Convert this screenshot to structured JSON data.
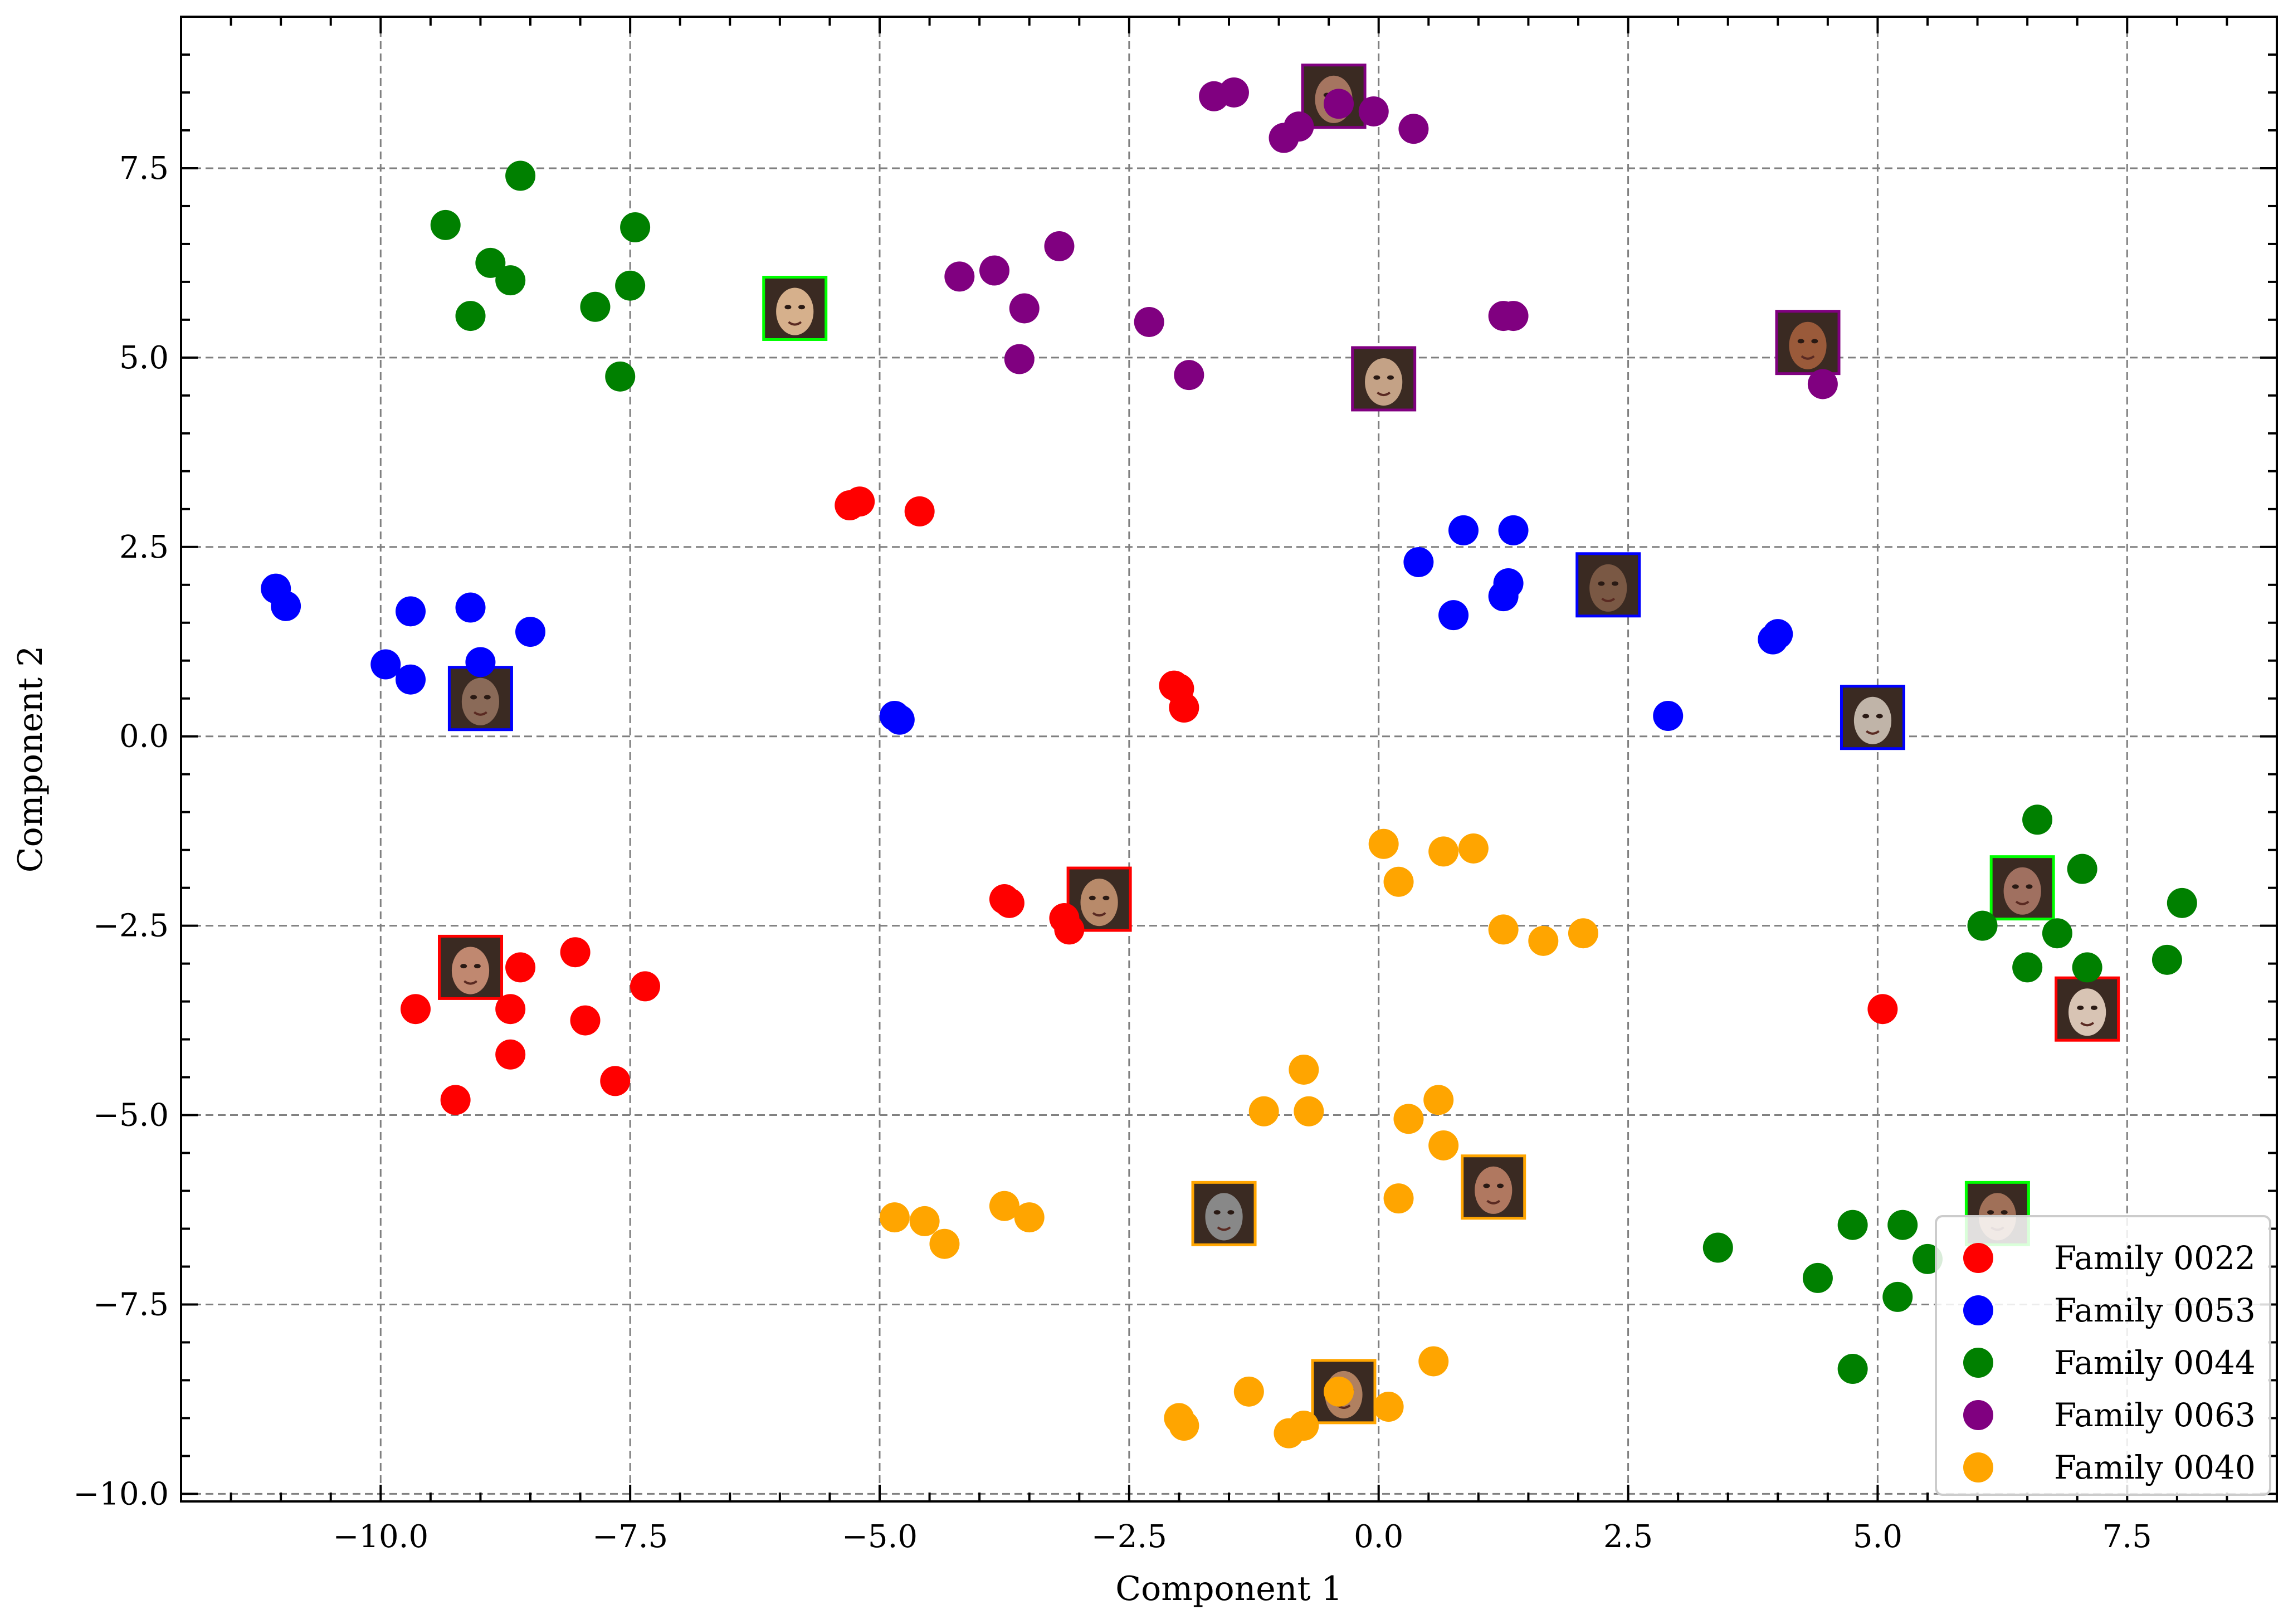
{
  "chart_data": {
    "type": "scatter",
    "xlabel": "Component 1",
    "ylabel": "Component 2",
    "xlim": [
      -12.0,
      9.0
    ],
    "ylim": [
      -10.1,
      9.5
    ],
    "xticks": [
      -10.0,
      -7.5,
      -5.0,
      -2.5,
      0.0,
      2.5,
      5.0,
      7.5
    ],
    "xtick_labels": [
      "−10.0",
      "−7.5",
      "−5.0",
      "−2.5",
      "0.0",
      "2.5",
      "5.0",
      "7.5"
    ],
    "yticks": [
      -10.0,
      -7.5,
      -5.0,
      -2.5,
      0.0,
      2.5,
      5.0,
      7.5
    ],
    "ytick_labels": [
      "−10.0",
      "−7.5",
      "−5.0",
      "−2.5",
      "0.0",
      "2.5",
      "5.0",
      "7.5"
    ],
    "grid": true,
    "legend_position": "lower-right",
    "series": [
      {
        "name": "Family 0022",
        "color": "#ff0000",
        "points": [
          [
            -5.3,
            3.05
          ],
          [
            -5.2,
            3.1
          ],
          [
            -4.6,
            2.97
          ],
          [
            -2.05,
            0.67
          ],
          [
            -2.0,
            0.63
          ],
          [
            -1.95,
            0.38
          ],
          [
            -3.75,
            -2.15
          ],
          [
            -3.7,
            -2.2
          ],
          [
            -3.15,
            -2.4
          ],
          [
            -3.1,
            -2.55
          ],
          [
            -9.65,
            -3.6
          ],
          [
            -9.25,
            -4.8
          ],
          [
            -8.7,
            -3.6
          ],
          [
            -8.7,
            -4.2
          ],
          [
            -8.6,
            -3.05
          ],
          [
            -8.05,
            -2.85
          ],
          [
            -7.95,
            -3.75
          ],
          [
            -7.65,
            -4.55
          ],
          [
            -7.35,
            -3.3
          ],
          [
            5.05,
            -3.6
          ]
        ]
      },
      {
        "name": "Family 0053",
        "color": "#0000ff",
        "points": [
          [
            -11.05,
            1.95
          ],
          [
            -10.95,
            1.72
          ],
          [
            -9.95,
            0.95
          ],
          [
            -9.7,
            0.75
          ],
          [
            -9.7,
            1.65
          ],
          [
            -9.1,
            1.7
          ],
          [
            -9.0,
            0.98
          ],
          [
            -8.5,
            1.38
          ],
          [
            -4.85,
            0.27
          ],
          [
            -4.8,
            0.22
          ],
          [
            0.4,
            2.3
          ],
          [
            0.75,
            1.6
          ],
          [
            0.85,
            2.72
          ],
          [
            1.25,
            1.85
          ],
          [
            1.3,
            2.02
          ],
          [
            1.35,
            2.72
          ],
          [
            3.95,
            1.28
          ],
          [
            4.0,
            1.35
          ],
          [
            2.9,
            0.27
          ]
        ]
      },
      {
        "name": "Family 0044",
        "color": "#008000",
        "points": [
          [
            -9.35,
            6.75
          ],
          [
            -9.1,
            5.55
          ],
          [
            -8.9,
            6.25
          ],
          [
            -8.7,
            6.02
          ],
          [
            -8.6,
            7.4
          ],
          [
            -7.85,
            5.67
          ],
          [
            -7.6,
            4.75
          ],
          [
            -7.5,
            5.95
          ],
          [
            -7.45,
            6.72
          ],
          [
            6.6,
            -1.1
          ],
          [
            7.05,
            -1.75
          ],
          [
            6.05,
            -2.5
          ],
          [
            6.8,
            -2.6
          ],
          [
            6.5,
            -3.05
          ],
          [
            7.1,
            -3.05
          ],
          [
            8.05,
            -2.2
          ],
          [
            7.9,
            -2.95
          ],
          [
            3.4,
            -6.75
          ],
          [
            4.4,
            -7.15
          ],
          [
            4.75,
            -6.45
          ],
          [
            5.25,
            -6.45
          ],
          [
            5.2,
            -7.4
          ],
          [
            4.75,
            -8.35
          ],
          [
            5.5,
            -6.9
          ]
        ]
      },
      {
        "name": "Family 0063",
        "color": "#800080",
        "points": [
          [
            -1.65,
            8.45
          ],
          [
            -1.45,
            8.5
          ],
          [
            -0.95,
            7.9
          ],
          [
            -0.8,
            8.05
          ],
          [
            -0.4,
            8.35
          ],
          [
            -0.05,
            8.25
          ],
          [
            0.35,
            8.02
          ],
          [
            -4.2,
            6.07
          ],
          [
            -3.85,
            6.15
          ],
          [
            -3.55,
            5.65
          ],
          [
            -3.6,
            4.98
          ],
          [
            -3.2,
            6.47
          ],
          [
            -2.3,
            5.47
          ],
          [
            -1.9,
            4.77
          ],
          [
            1.25,
            5.55
          ],
          [
            1.35,
            5.55
          ],
          [
            4.45,
            4.65
          ]
        ]
      },
      {
        "name": "Family 0040",
        "color": "#ffa500",
        "points": [
          [
            0.05,
            -1.42
          ],
          [
            0.2,
            -1.92
          ],
          [
            0.65,
            -1.52
          ],
          [
            0.95,
            -1.48
          ],
          [
            1.25,
            -2.55
          ],
          [
            1.65,
            -2.7
          ],
          [
            2.05,
            -2.6
          ],
          [
            -0.75,
            -4.4
          ],
          [
            -0.7,
            -4.95
          ],
          [
            -1.15,
            -4.95
          ],
          [
            0.3,
            -5.05
          ],
          [
            0.6,
            -4.8
          ],
          [
            0.65,
            -5.4
          ],
          [
            0.2,
            -6.1
          ],
          [
            -4.85,
            -6.35
          ],
          [
            -4.55,
            -6.4
          ],
          [
            -4.35,
            -6.7
          ],
          [
            -3.75,
            -6.2
          ],
          [
            -3.5,
            -6.35
          ],
          [
            -2.0,
            -9.0
          ],
          [
            -1.95,
            -9.1
          ],
          [
            -1.3,
            -8.65
          ],
          [
            -0.9,
            -9.2
          ],
          [
            -0.75,
            -9.1
          ],
          [
            -0.4,
            -8.65
          ],
          [
            0.1,
            -8.85
          ],
          [
            0.55,
            -8.25
          ]
        ]
      }
    ],
    "face_thumbnails": [
      {
        "x": -9.0,
        "y": 0.5,
        "family": "Family 0053",
        "tone": "#8a6a58"
      },
      {
        "x": -5.85,
        "y": 5.65,
        "family": "Family 0044",
        "tone": "#d6b08c"
      },
      {
        "x": -0.45,
        "y": 8.45,
        "family": "Family 0063",
        "tone": "#a57560"
      },
      {
        "x": 0.05,
        "y": 4.72,
        "family": "Family 0063",
        "tone": "#c4a286"
      },
      {
        "x": 4.3,
        "y": 5.2,
        "family": "Family 0063",
        "tone": "#9a5a3a"
      },
      {
        "x": 2.3,
        "y": 2.0,
        "family": "Family 0053",
        "tone": "#7a5844"
      },
      {
        "x": 4.95,
        "y": 0.25,
        "family": "Family 0053",
        "tone": "#c0b4a8"
      },
      {
        "x": -2.8,
        "y": -2.15,
        "family": "Family 0022",
        "tone": "#b88a6a"
      },
      {
        "x": -9.1,
        "y": -3.05,
        "family": "Family 0022",
        "tone": "#c08870"
      },
      {
        "x": 6.45,
        "y": -2.0,
        "family": "Family 0044",
        "tone": "#a07060"
      },
      {
        "x": 7.1,
        "y": -3.6,
        "family": "Family 0022",
        "tone": "#d8c4b4"
      },
      {
        "x": -1.55,
        "y": -6.3,
        "family": "Family 0040",
        "tone": "#888888"
      },
      {
        "x": 1.15,
        "y": -5.95,
        "family": "Family 0040",
        "tone": "#b07860"
      },
      {
        "x": -0.35,
        "y": -8.65,
        "family": "Family 0040",
        "tone": "#b08060"
      },
      {
        "x": 6.2,
        "y": -6.3,
        "family": "Family 0044",
        "tone": "#a07058"
      }
    ]
  }
}
